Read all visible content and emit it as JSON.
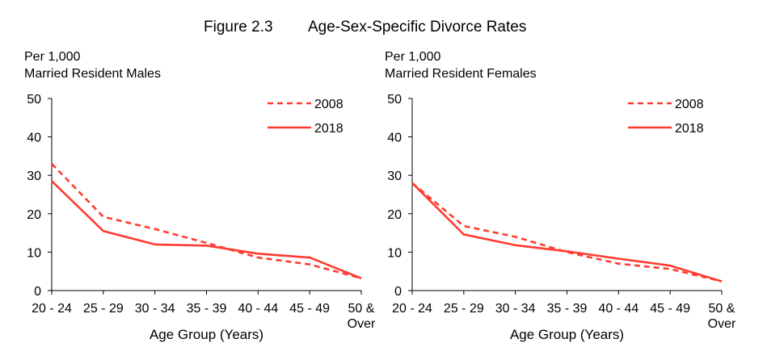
{
  "figure_label": "Figure 2.3",
  "figure_title": "Age-Sex-Specific Divorce Rates",
  "chart_data": [
    {
      "type": "line",
      "ylabel_line1": "Per 1,000",
      "ylabel_line2": "Married Resident Males",
      "xlabel": "Age Group (Years)",
      "categories": [
        "20 - 24",
        "25 - 29",
        "30 - 34",
        "35 - 39",
        "40 - 44",
        "45 - 49",
        "50 &\nOver"
      ],
      "ylim": [
        0,
        50
      ],
      "yticks": [
        0,
        10,
        20,
        30,
        40,
        50
      ],
      "grid": false,
      "legend_position": "top-right",
      "series": [
        {
          "name": "2008",
          "style": "dashed",
          "color": "#ff3b30",
          "values": [
            33.0,
            19.2,
            16.0,
            12.4,
            8.6,
            6.8,
            3.2
          ]
        },
        {
          "name": "2018",
          "style": "solid",
          "color": "#ff3b30",
          "values": [
            28.5,
            15.5,
            12.0,
            11.7,
            9.6,
            8.6,
            3.2
          ]
        }
      ]
    },
    {
      "type": "line",
      "ylabel_line1": "Per 1,000",
      "ylabel_line2": "Married Resident Females",
      "xlabel": "Age Group (Years)",
      "categories": [
        "20 - 24",
        "25 - 29",
        "30 - 34",
        "35 - 39",
        "40 - 44",
        "45 - 49",
        "50 &\nOver"
      ],
      "ylim": [
        0,
        50
      ],
      "yticks": [
        0,
        10,
        20,
        30,
        40,
        50
      ],
      "grid": false,
      "legend_position": "top-right",
      "series": [
        {
          "name": "2008",
          "style": "dashed",
          "color": "#ff3b30",
          "values": [
            28.0,
            16.8,
            14.0,
            10.0,
            7.0,
            5.6,
            2.4
          ]
        },
        {
          "name": "2018",
          "style": "solid",
          "color": "#ff3b30",
          "values": [
            28.0,
            14.6,
            11.8,
            10.2,
            8.3,
            6.5,
            2.4
          ]
        }
      ]
    }
  ]
}
